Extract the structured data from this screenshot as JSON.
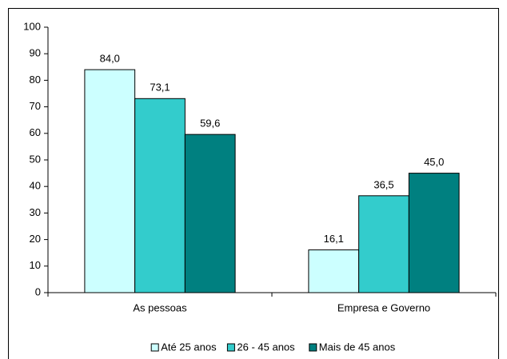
{
  "chart_data": {
    "type": "bar",
    "categories": [
      "As pessoas",
      "Empresa e Governo"
    ],
    "series": [
      {
        "name": "Até 25 anos",
        "color": "#ccffff",
        "values": [
          84.0,
          16.1
        ],
        "value_labels": [
          "84,0",
          "16,1"
        ]
      },
      {
        "name": "26 - 45 anos",
        "color": "#33cccc",
        "values": [
          73.1,
          36.5
        ],
        "value_labels": [
          "73,1",
          "36,5"
        ]
      },
      {
        "name": "Mais de 45 anos",
        "color": "#008080",
        "values": [
          59.6,
          45.0
        ],
        "value_labels": [
          "59,6",
          "45,0"
        ]
      }
    ],
    "ylim": [
      0,
      100
    ],
    "yticks": [
      0,
      10,
      20,
      30,
      40,
      50,
      60,
      70,
      80,
      90,
      100
    ],
    "grid": false,
    "legend": "bottom"
  }
}
